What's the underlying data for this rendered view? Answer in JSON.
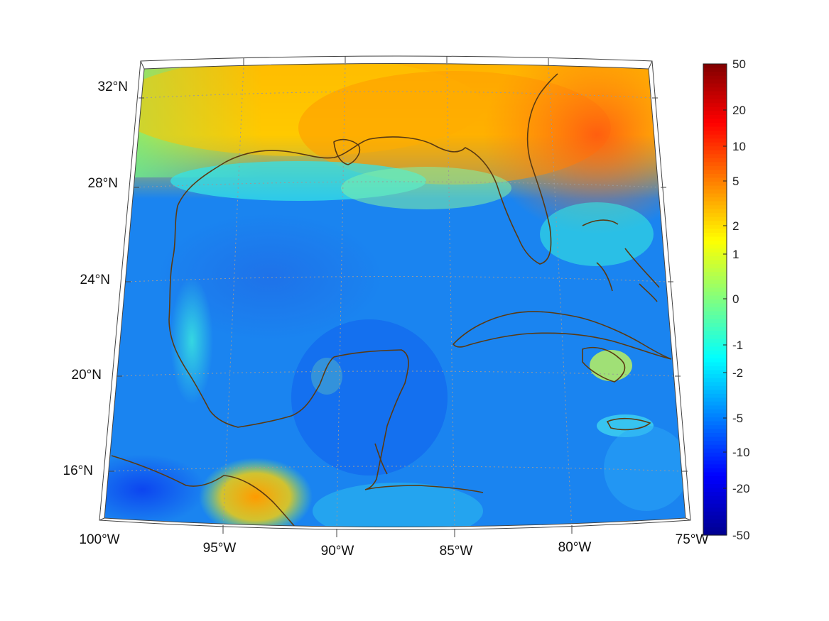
{
  "map": {
    "lon_labels": [
      "100°W",
      "95°W",
      "90°W",
      "85°W",
      "80°W",
      "75°W"
    ],
    "lat_labels": [
      "32°N",
      "28°N",
      "24°N",
      "20°N",
      "16°N"
    ]
  },
  "colorbar": {
    "tick_labels": [
      "50",
      "20",
      "10",
      "5",
      "2",
      "1",
      "0",
      "-1",
      "-2",
      "-5",
      "-10",
      "-20",
      "-50"
    ],
    "colormap": [
      "#00008f",
      "#0000ff",
      "#0080ff",
      "#00ffff",
      "#80ff80",
      "#ffff00",
      "#ff8000",
      "#ff0000",
      "#800000"
    ]
  },
  "colors": {
    "coastline": "#5a3a12",
    "graticule": "#9a9a9a",
    "frame": "#444444"
  }
}
